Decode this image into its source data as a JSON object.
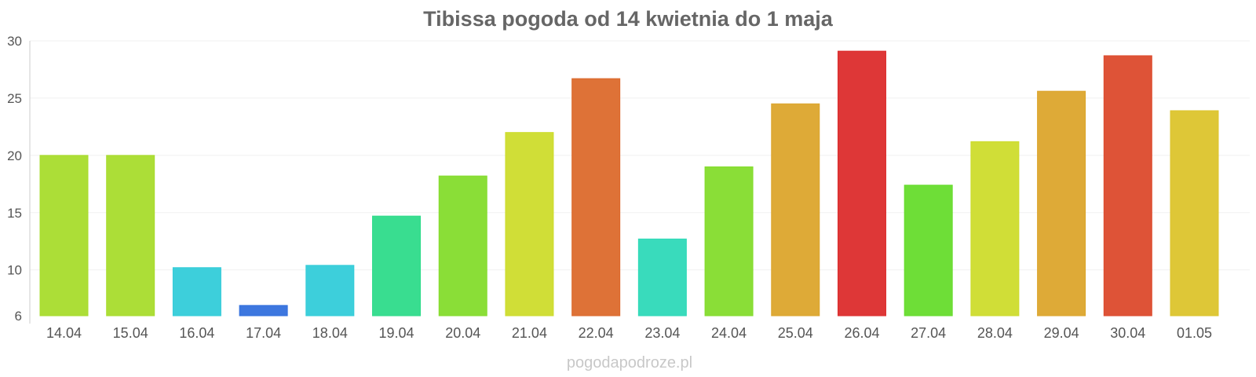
{
  "chart_data": {
    "type": "bar",
    "title": "Tibissa pogoda od 14 kwietnia do 1 maja",
    "xlabel": "",
    "ylabel": "",
    "ylim": [
      6,
      30
    ],
    "yticks": [
      6,
      10,
      15,
      20,
      25,
      30
    ],
    "grid": true,
    "categories": [
      "14.04",
      "15.04",
      "16.04",
      "17.04",
      "18.04",
      "19.04",
      "20.04",
      "21.04",
      "22.04",
      "23.04",
      "24.04",
      "25.04",
      "26.04",
      "27.04",
      "28.04",
      "29.04",
      "30.04",
      "01.05"
    ],
    "values": [
      20,
      20,
      10.2,
      6.9,
      10.4,
      14.7,
      18.2,
      22,
      26.7,
      12.7,
      19,
      24.5,
      29.1,
      17.4,
      21.2,
      25.6,
      28.7,
      23.9
    ],
    "colors": [
      "#a8dc2c",
      "#a8dc2c",
      "#33ccd9",
      "#3370dd",
      "#33ccd9",
      "#2edb8a",
      "#84dc2c",
      "#cddc2c",
      "#dc6a2c",
      "#2ed9b8",
      "#84dc2c",
      "#dca52c",
      "#dc2c2c",
      "#66dc2c",
      "#cddc2c",
      "#dca52c",
      "#dc4a2c",
      "#dcc42c"
    ]
  },
  "watermark": "pogodapodroze.pl"
}
